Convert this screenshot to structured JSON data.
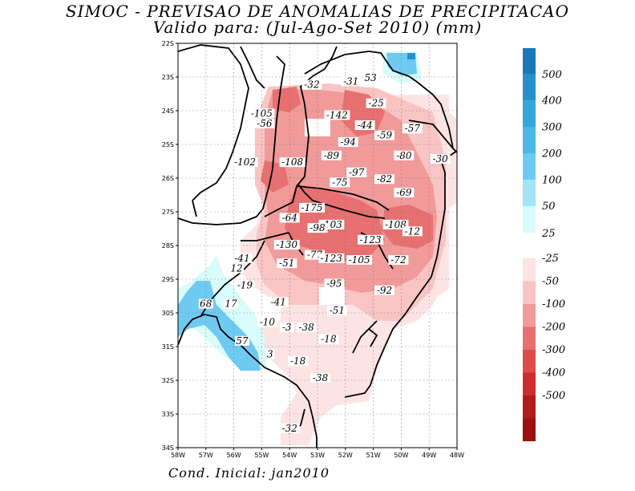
{
  "title_line1": "SIMOC - PREVISAO DE ANOMALIAS DE PRECIPITACAO",
  "title_line2": "Valido para: (Jul-Ago-Set 2010) (mm)",
  "footer": "Cond. Inicial: jan2010",
  "lat_labels": [
    "22S",
    "23S",
    "24S",
    "25S",
    "26S",
    "27S",
    "28S",
    "29S",
    "30S",
    "31S",
    "32S",
    "33S",
    "34S"
  ],
  "lon_labels": [
    "58W",
    "57W",
    "56W",
    "55W",
    "54W",
    "53W",
    "52W",
    "51W",
    "50W",
    "49W",
    "48W"
  ],
  "colorbar_positive": {
    "labels": [
      "500",
      "400",
      "300",
      "200",
      "100",
      "50",
      "25"
    ],
    "colors": [
      "#1a78b8",
      "#2590cc",
      "#35a6dc",
      "#4cb7e8",
      "#6fcaf2",
      "#a3e4f8",
      "#d8fbfc"
    ]
  },
  "colorbar_negative": {
    "labels": [
      "-25",
      "-50",
      "-100",
      "-200",
      "-300",
      "-400",
      "-500"
    ],
    "colors": [
      "#fde4e4",
      "#f9c4c4",
      "#f19a9a",
      "#e77070",
      "#dd4b4b",
      "#cc2e2e",
      "#b01c1c",
      "#9c1010"
    ]
  },
  "contour_labels": [
    {
      "text": "-32",
      "lon": -53.2,
      "lat": -23.3
    },
    {
      "text": "-31",
      "lon": -51.8,
      "lat": -23.2
    },
    {
      "text": "53",
      "lon": -51.1,
      "lat": -23.1
    },
    {
      "text": "-25",
      "lon": -50.9,
      "lat": -23.85
    },
    {
      "text": "-105",
      "lon": -55.0,
      "lat": -24.15
    },
    {
      "text": "-142",
      "lon": -52.3,
      "lat": -24.2
    },
    {
      "text": "-56",
      "lon": -54.9,
      "lat": -24.45
    },
    {
      "text": "-44",
      "lon": -51.3,
      "lat": -24.5
    },
    {
      "text": "-57",
      "lon": -49.6,
      "lat": -24.6
    },
    {
      "text": "-59",
      "lon": -50.6,
      "lat": -24.8
    },
    {
      "text": "-94",
      "lon": -51.9,
      "lat": -25.0
    },
    {
      "text": "-89",
      "lon": -52.5,
      "lat": -25.4
    },
    {
      "text": "-80",
      "lon": -49.9,
      "lat": -25.4
    },
    {
      "text": "-30",
      "lon": -48.6,
      "lat": -25.5
    },
    {
      "text": "-102",
      "lon": -55.6,
      "lat": -25.6
    },
    {
      "text": "-108",
      "lon": -53.9,
      "lat": -25.6
    },
    {
      "text": "-97",
      "lon": -51.6,
      "lat": -25.9
    },
    {
      "text": "-82",
      "lon": -50.6,
      "lat": -26.1
    },
    {
      "text": "-75",
      "lon": -52.2,
      "lat": -26.2
    },
    {
      "text": "-69",
      "lon": -49.9,
      "lat": -26.5
    },
    {
      "text": "-175",
      "lon": -53.2,
      "lat": -26.95
    },
    {
      "text": "-64",
      "lon": -54.0,
      "lat": -27.25
    },
    {
      "text": "-103",
      "lon": -52.5,
      "lat": -27.45
    },
    {
      "text": "-98",
      "lon": -53.0,
      "lat": -27.55
    },
    {
      "text": "-108",
      "lon": -50.2,
      "lat": -27.45
    },
    {
      "text": "-12",
      "lon": -49.6,
      "lat": -27.65
    },
    {
      "text": "-130",
      "lon": -54.1,
      "lat": -28.05
    },
    {
      "text": "-123",
      "lon": -51.1,
      "lat": -27.9
    },
    {
      "text": "-41",
      "lon": -55.7,
      "lat": -28.45
    },
    {
      "text": "-77",
      "lon": -53.1,
      "lat": -28.35
    },
    {
      "text": "-123",
      "lon": -52.5,
      "lat": -28.45
    },
    {
      "text": "-105",
      "lon": -51.5,
      "lat": -28.5
    },
    {
      "text": "-72",
      "lon": -50.1,
      "lat": -28.5
    },
    {
      "text": "-51",
      "lon": -54.1,
      "lat": -28.6
    },
    {
      "text": "12",
      "lon": -55.9,
      "lat": -28.75
    },
    {
      "text": "-19",
      "lon": -55.6,
      "lat": -29.25
    },
    {
      "text": "-95",
      "lon": -52.4,
      "lat": -29.2
    },
    {
      "text": "-92",
      "lon": -50.6,
      "lat": -29.4
    },
    {
      "text": "-41",
      "lon": -54.4,
      "lat": -29.75
    },
    {
      "text": "68",
      "lon": -57.0,
      "lat": -29.8
    },
    {
      "text": "17",
      "lon": -56.1,
      "lat": -29.8
    },
    {
      "text": "-51",
      "lon": -52.3,
      "lat": -30.0
    },
    {
      "text": "-10",
      "lon": -54.8,
      "lat": -30.35
    },
    {
      "text": "-3",
      "lon": -54.1,
      "lat": -30.5
    },
    {
      "text": "-38",
      "lon": -53.4,
      "lat": -30.5
    },
    {
      "text": "-18",
      "lon": -52.6,
      "lat": -30.85
    },
    {
      "text": "57",
      "lon": -55.7,
      "lat": -30.9
    },
    {
      "text": "3",
      "lon": -54.7,
      "lat": -31.3
    },
    {
      "text": "-18",
      "lon": -53.7,
      "lat": -31.5
    },
    {
      "text": "-38",
      "lon": -52.9,
      "lat": -32.0
    },
    {
      "text": "-32",
      "lon": -54.0,
      "lat": -33.5
    }
  ]
}
